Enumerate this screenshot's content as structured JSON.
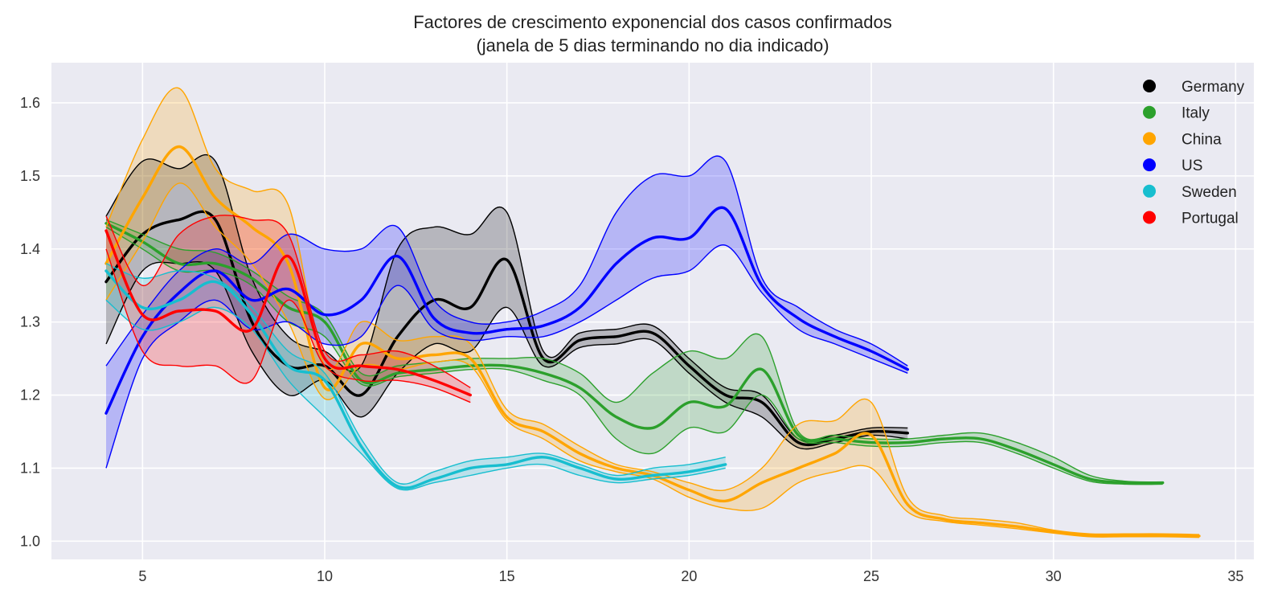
{
  "chart_data": {
    "type": "line",
    "title": "Factores de crescimento exponencial dos casos confirmados",
    "subtitle": "(janela de 5 dias terminando no dia indicado)",
    "xlabel": "",
    "ylabel": "",
    "xlim": [
      2.5,
      35.5
    ],
    "ylim": [
      0.975,
      1.655
    ],
    "xticks": [
      5,
      10,
      15,
      20,
      25,
      30,
      35
    ],
    "yticks": [
      1.0,
      1.1,
      1.2,
      1.3,
      1.4,
      1.5,
      1.6
    ],
    "grid": true,
    "legend_position": "top-right",
    "series": [
      {
        "name": "Germany",
        "color": "#000000",
        "x": [
          4,
          5,
          6,
          7,
          8,
          9,
          10,
          11,
          12,
          13,
          14,
          15,
          16,
          17,
          18,
          19,
          20,
          21,
          22,
          23,
          24,
          25,
          26
        ],
        "y": [
          1.355,
          1.42,
          1.44,
          1.44,
          1.3,
          1.24,
          1.24,
          1.2,
          1.28,
          1.33,
          1.32,
          1.385,
          1.25,
          1.275,
          1.28,
          1.285,
          1.24,
          1.2,
          1.19,
          1.135,
          1.14,
          1.15,
          1.148
        ],
        "upper": [
          1.445,
          1.52,
          1.51,
          1.52,
          1.36,
          1.28,
          1.26,
          1.24,
          1.4,
          1.43,
          1.42,
          1.45,
          1.26,
          1.285,
          1.29,
          1.295,
          1.25,
          1.21,
          1.2,
          1.14,
          1.145,
          1.155,
          1.155
        ],
        "lower": [
          1.27,
          1.37,
          1.38,
          1.37,
          1.26,
          1.2,
          1.22,
          1.17,
          1.23,
          1.27,
          1.26,
          1.32,
          1.24,
          1.265,
          1.27,
          1.275,
          1.23,
          1.19,
          1.17,
          1.128,
          1.135,
          1.145,
          1.14
        ]
      },
      {
        "name": "Italy",
        "color": "#2ca02c",
        "x": [
          4,
          5,
          6,
          7,
          8,
          9,
          10,
          11,
          12,
          13,
          14,
          15,
          16,
          17,
          18,
          19,
          20,
          21,
          22,
          23,
          24,
          25,
          26,
          27,
          28,
          29,
          30,
          31,
          32,
          33
        ],
        "y": [
          1.435,
          1.41,
          1.38,
          1.38,
          1.36,
          1.32,
          1.3,
          1.22,
          1.23,
          1.235,
          1.24,
          1.24,
          1.23,
          1.21,
          1.17,
          1.155,
          1.19,
          1.185,
          1.235,
          1.145,
          1.14,
          1.135,
          1.135,
          1.14,
          1.14,
          1.125,
          1.105,
          1.085,
          1.08,
          1.08
        ],
        "upper": [
          1.44,
          1.42,
          1.4,
          1.395,
          1.37,
          1.335,
          1.31,
          1.23,
          1.24,
          1.245,
          1.25,
          1.25,
          1.25,
          1.23,
          1.19,
          1.23,
          1.26,
          1.25,
          1.28,
          1.15,
          1.145,
          1.14,
          1.14,
          1.145,
          1.148,
          1.135,
          1.115,
          1.09,
          1.082,
          1.081
        ],
        "lower": [
          1.43,
          1.4,
          1.37,
          1.37,
          1.35,
          1.3,
          1.28,
          1.215,
          1.225,
          1.23,
          1.235,
          1.235,
          1.22,
          1.2,
          1.14,
          1.12,
          1.155,
          1.15,
          1.2,
          1.14,
          1.135,
          1.13,
          1.13,
          1.135,
          1.135,
          1.12,
          1.1,
          1.082,
          1.078,
          1.078
        ]
      },
      {
        "name": "China",
        "color": "#ffa500",
        "x": [
          4,
          5,
          6,
          7,
          8,
          9,
          10,
          11,
          12,
          13,
          14,
          15,
          16,
          17,
          18,
          19,
          20,
          21,
          22,
          23,
          24,
          25,
          26,
          27,
          28,
          29,
          30,
          31,
          32,
          33,
          34
        ],
        "y": [
          1.38,
          1.47,
          1.54,
          1.47,
          1.43,
          1.38,
          1.21,
          1.27,
          1.25,
          1.255,
          1.25,
          1.17,
          1.15,
          1.12,
          1.1,
          1.09,
          1.07,
          1.055,
          1.08,
          1.1,
          1.12,
          1.145,
          1.05,
          1.03,
          1.025,
          1.02,
          1.013,
          1.008,
          1.008,
          1.008,
          1.007
        ],
        "upper": [
          1.43,
          1.55,
          1.62,
          1.51,
          1.48,
          1.46,
          1.24,
          1.3,
          1.275,
          1.28,
          1.27,
          1.18,
          1.16,
          1.13,
          1.105,
          1.095,
          1.08,
          1.07,
          1.1,
          1.16,
          1.165,
          1.19,
          1.06,
          1.035,
          1.03,
          1.025,
          1.015,
          1.01,
          1.01,
          1.01,
          1.009
        ],
        "lower": [
          1.33,
          1.41,
          1.49,
          1.43,
          1.38,
          1.3,
          1.195,
          1.24,
          1.235,
          1.245,
          1.24,
          1.165,
          1.14,
          1.11,
          1.095,
          1.085,
          1.06,
          1.045,
          1.045,
          1.08,
          1.095,
          1.1,
          1.04,
          1.027,
          1.022,
          1.017,
          1.011,
          1.006,
          1.006,
          1.006,
          1.005
        ]
      },
      {
        "name": "US",
        "color": "#0000ff",
        "x": [
          4,
          5,
          6,
          7,
          8,
          9,
          10,
          11,
          12,
          13,
          14,
          15,
          16,
          17,
          18,
          19,
          20,
          21,
          22,
          23,
          24,
          25,
          26
        ],
        "y": [
          1.175,
          1.28,
          1.34,
          1.37,
          1.33,
          1.345,
          1.31,
          1.33,
          1.39,
          1.305,
          1.285,
          1.29,
          1.295,
          1.32,
          1.38,
          1.415,
          1.415,
          1.455,
          1.35,
          1.305,
          1.28,
          1.26,
          1.235
        ],
        "upper": [
          1.24,
          1.31,
          1.37,
          1.4,
          1.38,
          1.42,
          1.4,
          1.4,
          1.43,
          1.33,
          1.3,
          1.3,
          1.315,
          1.35,
          1.45,
          1.5,
          1.5,
          1.52,
          1.36,
          1.32,
          1.29,
          1.27,
          1.24
        ],
        "lower": [
          1.1,
          1.25,
          1.3,
          1.33,
          1.29,
          1.3,
          1.27,
          1.28,
          1.35,
          1.29,
          1.275,
          1.28,
          1.28,
          1.3,
          1.33,
          1.36,
          1.37,
          1.405,
          1.34,
          1.29,
          1.27,
          1.25,
          1.23
        ]
      },
      {
        "name": "Sweden",
        "color": "#17becf",
        "x": [
          4,
          5,
          6,
          7,
          8,
          9,
          10,
          11,
          12,
          13,
          14,
          15,
          16,
          17,
          18,
          19,
          20,
          21
        ],
        "y": [
          1.37,
          1.32,
          1.33,
          1.355,
          1.31,
          1.24,
          1.22,
          1.13,
          1.075,
          1.085,
          1.1,
          1.105,
          1.115,
          1.1,
          1.085,
          1.09,
          1.095,
          1.105
        ],
        "upper": [
          1.38,
          1.36,
          1.37,
          1.36,
          1.32,
          1.26,
          1.23,
          1.14,
          1.08,
          1.095,
          1.11,
          1.115,
          1.12,
          1.105,
          1.09,
          1.1,
          1.105,
          1.115
        ],
        "lower": [
          1.33,
          1.29,
          1.3,
          1.32,
          1.29,
          1.22,
          1.17,
          1.12,
          1.072,
          1.08,
          1.09,
          1.1,
          1.105,
          1.09,
          1.08,
          1.085,
          1.09,
          1.1
        ]
      },
      {
        "name": "Portugal",
        "color": "#ff0000",
        "x": [
          4,
          5,
          6,
          7,
          8,
          9,
          10,
          11,
          12,
          13,
          14
        ],
        "y": [
          1.425,
          1.31,
          1.315,
          1.315,
          1.29,
          1.39,
          1.25,
          1.24,
          1.235,
          1.22,
          1.2
        ],
        "upper": [
          1.445,
          1.35,
          1.42,
          1.445,
          1.44,
          1.42,
          1.26,
          1.255,
          1.26,
          1.24,
          1.21
        ],
        "lower": [
          1.4,
          1.26,
          1.24,
          1.24,
          1.22,
          1.33,
          1.24,
          1.22,
          1.22,
          1.21,
          1.19
        ]
      }
    ]
  }
}
